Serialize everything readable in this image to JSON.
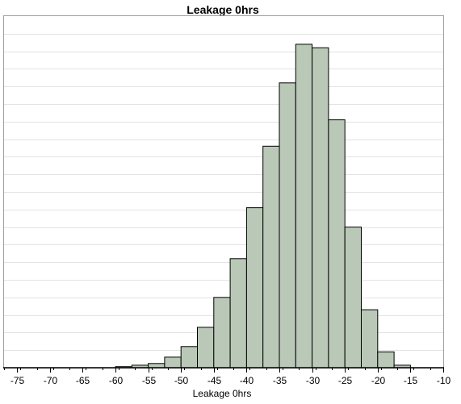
{
  "chart_data": {
    "type": "bar",
    "title": "Leakage 0hrs",
    "xlabel": "Leakage 0hrs",
    "ylabel": "",
    "xlim": [
      -77,
      -10
    ],
    "ylim": [
      0,
      100
    ],
    "x_ticks": [
      -75,
      -70,
      -65,
      -60,
      -55,
      -50,
      -45,
      -40,
      -35,
      -30,
      -25,
      -20,
      -15,
      -10
    ],
    "bin_width": 2.5,
    "bins": [
      {
        "start": -60.0,
        "value": 0.3
      },
      {
        "start": -57.5,
        "value": 0.7
      },
      {
        "start": -55.0,
        "value": 1.2
      },
      {
        "start": -52.5,
        "value": 3.0
      },
      {
        "start": -50.0,
        "value": 6.0
      },
      {
        "start": -47.5,
        "value": 11.5
      },
      {
        "start": -45.0,
        "value": 20.0
      },
      {
        "start": -42.5,
        "value": 31.0
      },
      {
        "start": -40.0,
        "value": 45.5
      },
      {
        "start": -37.5,
        "value": 63.0
      },
      {
        "start": -35.0,
        "value": 81.0
      },
      {
        "start": -32.5,
        "value": 92.0
      },
      {
        "start": -30.0,
        "value": 91.0
      },
      {
        "start": -27.5,
        "value": 70.5
      },
      {
        "start": -25.0,
        "value": 40.0
      },
      {
        "start": -22.5,
        "value": 16.5
      },
      {
        "start": -20.0,
        "value": 4.5
      },
      {
        "start": -17.5,
        "value": 0.7
      }
    ],
    "grid": true,
    "legend": "none"
  }
}
